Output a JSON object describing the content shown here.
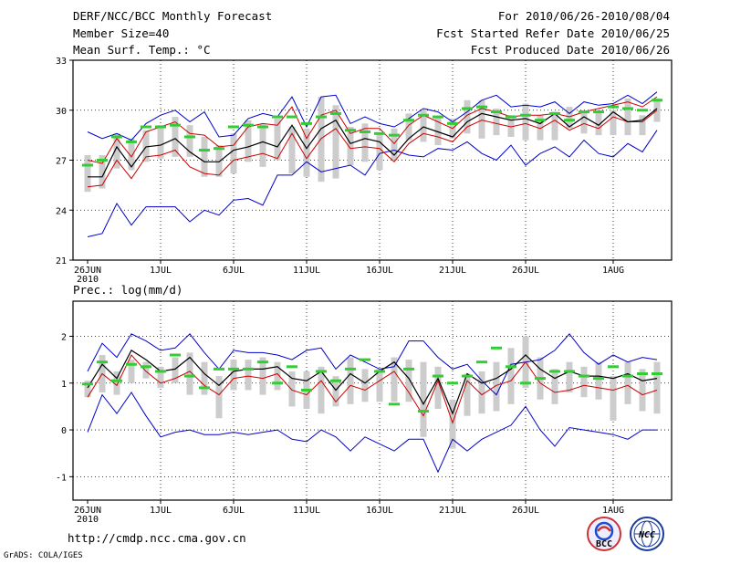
{
  "header": {
    "left": [
      "DERF/NCC/BCC Monthly Forecast",
      "Member Size=40",
      "Mean Surf. Temp.: °C"
    ],
    "right": [
      "For 2010/06/26-2010/08/04",
      "Fcst Started Refer Date 2010/06/25",
      "Fcst Produced Date 2010/06/26"
    ]
  },
  "panel2_title": "Prec.: log(mm/d)",
  "footer": {
    "url": "http://cmdp.ncc.cma.gov.cn",
    "credit": "GrADS: COLA/IGES"
  },
  "logos": [
    "BCC",
    "NCC"
  ],
  "colors": {
    "mean": "#000000",
    "median": "#cc0000",
    "envelope": "#0000cc",
    "box": "#cccccc",
    "obs": "#33cc33",
    "grid": "#000000"
  },
  "chart_data": [
    {
      "type": "line",
      "title": "Mean Surf. Temp.: °C",
      "x_tick_labels": [
        "26JUN",
        "1JUL",
        "6JUL",
        "11JUL",
        "16JUL",
        "21JUL",
        "26JUL",
        "1AUG"
      ],
      "x_year_label": "2010",
      "ylim": [
        21,
        33
      ],
      "yticks": [
        21,
        24,
        27,
        30,
        33
      ],
      "days": 40,
      "series": [
        {
          "name": "max",
          "values": [
            28.7,
            28.3,
            28.6,
            28.2,
            29.2,
            29.7,
            30.0,
            29.3,
            29.9,
            28.4,
            28.5,
            29.5,
            29.8,
            29.6,
            30.8,
            29.0,
            30.8,
            30.9,
            29.2,
            29.6,
            29.2,
            29.0,
            29.5,
            30.1,
            29.9,
            29.3,
            29.9,
            30.6,
            30.9,
            30.2,
            30.3,
            30.2,
            30.5,
            29.8,
            30.5,
            30.3,
            30.4,
            30.9,
            30.4,
            31.1
          ]
        },
        {
          "name": "upper",
          "values": [
            27.0,
            26.8,
            28.3,
            27.2,
            28.7,
            29.0,
            29.3,
            28.6,
            28.5,
            27.8,
            27.9,
            29.0,
            29.2,
            29.1,
            30.2,
            28.3,
            29.7,
            30.0,
            28.6,
            28.9,
            28.9,
            28.0,
            29.1,
            29.7,
            29.3,
            28.9,
            29.7,
            30.1,
            29.9,
            29.6,
            29.7,
            29.7,
            29.8,
            29.6,
            29.9,
            30.1,
            30.3,
            30.5,
            30.2,
            30.8
          ]
        },
        {
          "name": "mean",
          "values": [
            26.0,
            26.0,
            27.8,
            26.6,
            27.8,
            27.9,
            28.3,
            27.5,
            26.9,
            26.9,
            27.6,
            27.8,
            28.1,
            27.8,
            29.1,
            27.7,
            28.9,
            29.4,
            28.0,
            28.3,
            28.1,
            27.3,
            28.3,
            29.0,
            28.7,
            28.4,
            29.3,
            29.8,
            29.6,
            29.4,
            29.5,
            29.2,
            29.8,
            29.0,
            29.6,
            29.1,
            29.9,
            29.3,
            29.4,
            30.1
          ]
        },
        {
          "name": "median",
          "values": [
            25.4,
            25.5,
            27.0,
            25.9,
            27.2,
            27.3,
            27.6,
            26.6,
            26.2,
            26.1,
            27.0,
            27.2,
            27.4,
            27.1,
            28.6,
            27.1,
            28.3,
            28.9,
            27.7,
            27.8,
            27.7,
            26.9,
            28.0,
            28.6,
            28.4,
            28.1,
            29.0,
            29.4,
            29.2,
            29.0,
            29.2,
            28.9,
            29.4,
            28.8,
            29.2,
            28.9,
            29.6,
            29.3,
            29.3,
            30.0
          ]
        },
        {
          "name": "min",
          "values": [
            22.4,
            22.6,
            24.4,
            23.1,
            24.2,
            24.2,
            24.2,
            23.3,
            24.0,
            23.7,
            24.6,
            24.7,
            24.3,
            26.1,
            26.1,
            26.9,
            26.3,
            26.5,
            26.7,
            26.1,
            27.4,
            27.6,
            27.3,
            27.2,
            27.7,
            27.6,
            28.1,
            27.4,
            27.0,
            27.9,
            26.7,
            27.4,
            27.8,
            27.2,
            28.2,
            27.4,
            27.2,
            28.0,
            27.5,
            28.8
          ]
        },
        {
          "name": "box_lo",
          "values": [
            25.1,
            25.3,
            26.5,
            26.4,
            26.9,
            27.1,
            27.2,
            27.2,
            26.0,
            26.0,
            26.2,
            26.9,
            26.6,
            27.0,
            26.2,
            26.0,
            25.7,
            25.9,
            26.7,
            26.9,
            26.4,
            27.0,
            28.2,
            28.1,
            27.9,
            28.3,
            28.6,
            28.3,
            28.5,
            28.4,
            28.2,
            28.2,
            28.2,
            28.9,
            28.6,
            28.5,
            28.5,
            28.5,
            28.5,
            29.3
          ]
        },
        {
          "name": "box_hi",
          "values": [
            27.3,
            27.3,
            28.6,
            28.3,
            28.8,
            29.1,
            29.6,
            29.1,
            28.4,
            27.9,
            28.6,
            29.4,
            29.2,
            29.5,
            29.0,
            28.9,
            30.8,
            30.3,
            29.0,
            29.2,
            28.6,
            28.9,
            29.8,
            30.0,
            29.6,
            29.5,
            30.6,
            30.6,
            30.1,
            29.7,
            30.4,
            29.7,
            29.9,
            30.2,
            29.9,
            30.0,
            30.0,
            30.7,
            29.7,
            30.7
          ]
        },
        {
          "name": "obs",
          "values": [
            26.7,
            27.0,
            28.4,
            28.1,
            29.0,
            29.0,
            29.1,
            28.4,
            27.6,
            27.7,
            29.0,
            29.1,
            29.0,
            29.6,
            29.6,
            29.2,
            29.6,
            29.8,
            28.8,
            28.7,
            28.6,
            28.5,
            29.4,
            29.7,
            29.6,
            29.2,
            30.1,
            30.2,
            29.9,
            29.6,
            29.7,
            29.4,
            29.8,
            29.4,
            29.9,
            29.9,
            30.2,
            30.1,
            30.0,
            30.6
          ]
        }
      ]
    },
    {
      "type": "line",
      "title": "Prec.: log(mm/d)",
      "x_tick_labels": [
        "26JUN",
        "1JUL",
        "6JUL",
        "11JUL",
        "16JUL",
        "21JUL",
        "26JUL",
        "1AUG"
      ],
      "x_year_label": "2010",
      "ylim": [
        -1.5,
        2.75
      ],
      "yticks": [
        -1,
        0,
        1,
        2
      ],
      "days": 40,
      "series": [
        {
          "name": "max",
          "values": [
            1.25,
            1.85,
            1.55,
            2.05,
            1.9,
            1.7,
            1.75,
            2.05,
            1.65,
            1.3,
            1.7,
            1.65,
            1.65,
            1.6,
            1.5,
            1.7,
            1.75,
            1.3,
            1.6,
            1.45,
            1.3,
            1.35,
            1.9,
            1.9,
            1.55,
            1.3,
            1.4,
            1.05,
            0.75,
            1.4,
            1.45,
            1.5,
            1.7,
            2.05,
            1.65,
            1.4,
            1.6,
            1.45,
            1.55,
            1.5
          ]
        },
        {
          "name": "mean",
          "values": [
            0.9,
            1.4,
            1.1,
            1.7,
            1.5,
            1.25,
            1.3,
            1.55,
            1.2,
            0.95,
            1.25,
            1.3,
            1.3,
            1.35,
            1.1,
            1.05,
            1.25,
            0.85,
            1.2,
            1.0,
            1.25,
            1.45,
            1.1,
            0.55,
            1.1,
            0.35,
            1.2,
            1.0,
            1.1,
            1.3,
            1.6,
            1.3,
            1.1,
            1.25,
            1.15,
            1.15,
            1.1,
            1.2,
            1.05,
            1.1
          ]
        },
        {
          "name": "median",
          "values": [
            0.7,
            1.2,
            0.95,
            1.6,
            1.25,
            1.0,
            1.1,
            1.25,
            0.95,
            0.75,
            1.1,
            1.15,
            1.1,
            1.2,
            0.85,
            0.75,
            1.05,
            0.6,
            0.95,
            0.85,
            1.05,
            1.25,
            0.8,
            0.3,
            1.05,
            0.15,
            1.05,
            0.75,
            0.95,
            1.05,
            1.45,
            1.0,
            0.8,
            0.85,
            0.95,
            0.9,
            0.85,
            0.95,
            0.75,
            0.85
          ]
        },
        {
          "name": "min",
          "values": [
            -0.05,
            0.75,
            0.35,
            0.8,
            0.3,
            -0.15,
            -0.05,
            0.0,
            -0.1,
            -0.1,
            -0.05,
            -0.1,
            -0.05,
            0.0,
            -0.2,
            -0.25,
            0.0,
            -0.15,
            -0.45,
            -0.15,
            -0.3,
            -0.45,
            -0.2,
            -0.2,
            -0.9,
            -0.2,
            -0.45,
            -0.2,
            -0.05,
            0.1,
            0.5,
            0.0,
            -0.35,
            0.05,
            0.0,
            -0.05,
            -0.1,
            -0.2,
            0.0,
            0.0
          ]
        },
        {
          "name": "box_lo",
          "values": [
            0.7,
            0.8,
            0.75,
            1.0,
            1.1,
            0.9,
            1.0,
            0.75,
            0.75,
            0.25,
            0.85,
            0.85,
            0.75,
            0.85,
            0.5,
            0.45,
            0.35,
            0.5,
            0.55,
            0.6,
            0.6,
            0.6,
            0.6,
            -0.15,
            0.45,
            -0.4,
            0.3,
            0.35,
            0.4,
            0.55,
            0.9,
            0.65,
            0.55,
            0.8,
            0.7,
            0.65,
            0.2,
            0.55,
            0.4,
            0.35
          ]
        },
        {
          "name": "box_hi",
          "values": [
            1.05,
            1.6,
            1.25,
            1.5,
            1.45,
            1.35,
            1.55,
            1.65,
            1.45,
            1.15,
            1.5,
            1.5,
            1.55,
            1.45,
            1.25,
            1.25,
            1.35,
            1.15,
            1.55,
            1.3,
            1.3,
            1.55,
            1.5,
            1.45,
            1.35,
            0.65,
            1.2,
            1.25,
            1.45,
            1.75,
            2.0,
            1.55,
            1.3,
            1.45,
            1.35,
            1.45,
            1.15,
            1.45,
            1.3,
            1.45
          ]
        },
        {
          "name": "obs",
          "values": [
            0.98,
            1.45,
            1.05,
            1.4,
            1.35,
            1.25,
            1.6,
            1.15,
            0.9,
            1.3,
            1.3,
            1.3,
            1.45,
            1.0,
            1.35,
            0.85,
            1.25,
            1.05,
            1.3,
            1.5,
            1.25,
            0.55,
            1.3,
            0.4,
            1.15,
            1.0,
            1.15,
            1.45,
            1.75,
            1.35,
            1.0,
            1.1,
            1.25,
            1.25,
            1.15,
            1.1,
            1.35,
            1.15,
            1.2,
            1.2
          ]
        }
      ]
    }
  ]
}
